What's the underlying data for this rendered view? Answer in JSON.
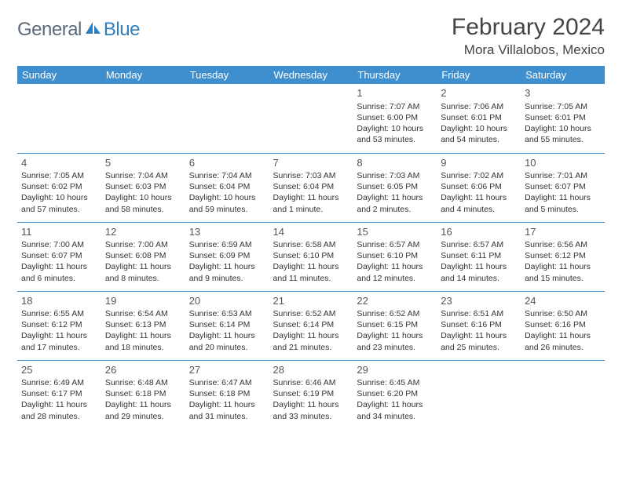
{
  "brand": {
    "name_part1": "General",
    "name_part2": "Blue",
    "part1_color": "#5a6a78",
    "part2_color": "#2f7fbf",
    "icon_color": "#2f7fbf"
  },
  "title": "February 2024",
  "location": "Mora Villalobos, Mexico",
  "colors": {
    "header_bg": "#3f8fcf",
    "row_divider": "#3f8fcf",
    "page_bg": "#ffffff",
    "text": "#333333"
  },
  "day_headers": [
    "Sunday",
    "Monday",
    "Tuesday",
    "Wednesday",
    "Thursday",
    "Friday",
    "Saturday"
  ],
  "first_weekday_index": 4,
  "days": [
    {
      "n": 1,
      "sunrise": "7:07 AM",
      "sunset": "6:00 PM",
      "daylight": "10 hours and 53 minutes."
    },
    {
      "n": 2,
      "sunrise": "7:06 AM",
      "sunset": "6:01 PM",
      "daylight": "10 hours and 54 minutes."
    },
    {
      "n": 3,
      "sunrise": "7:05 AM",
      "sunset": "6:01 PM",
      "daylight": "10 hours and 55 minutes."
    },
    {
      "n": 4,
      "sunrise": "7:05 AM",
      "sunset": "6:02 PM",
      "daylight": "10 hours and 57 minutes."
    },
    {
      "n": 5,
      "sunrise": "7:04 AM",
      "sunset": "6:03 PM",
      "daylight": "10 hours and 58 minutes."
    },
    {
      "n": 6,
      "sunrise": "7:04 AM",
      "sunset": "6:04 PM",
      "daylight": "10 hours and 59 minutes."
    },
    {
      "n": 7,
      "sunrise": "7:03 AM",
      "sunset": "6:04 PM",
      "daylight": "11 hours and 1 minute."
    },
    {
      "n": 8,
      "sunrise": "7:03 AM",
      "sunset": "6:05 PM",
      "daylight": "11 hours and 2 minutes."
    },
    {
      "n": 9,
      "sunrise": "7:02 AM",
      "sunset": "6:06 PM",
      "daylight": "11 hours and 4 minutes."
    },
    {
      "n": 10,
      "sunrise": "7:01 AM",
      "sunset": "6:07 PM",
      "daylight": "11 hours and 5 minutes."
    },
    {
      "n": 11,
      "sunrise": "7:00 AM",
      "sunset": "6:07 PM",
      "daylight": "11 hours and 6 minutes."
    },
    {
      "n": 12,
      "sunrise": "7:00 AM",
      "sunset": "6:08 PM",
      "daylight": "11 hours and 8 minutes."
    },
    {
      "n": 13,
      "sunrise": "6:59 AM",
      "sunset": "6:09 PM",
      "daylight": "11 hours and 9 minutes."
    },
    {
      "n": 14,
      "sunrise": "6:58 AM",
      "sunset": "6:10 PM",
      "daylight": "11 hours and 11 minutes."
    },
    {
      "n": 15,
      "sunrise": "6:57 AM",
      "sunset": "6:10 PM",
      "daylight": "11 hours and 12 minutes."
    },
    {
      "n": 16,
      "sunrise": "6:57 AM",
      "sunset": "6:11 PM",
      "daylight": "11 hours and 14 minutes."
    },
    {
      "n": 17,
      "sunrise": "6:56 AM",
      "sunset": "6:12 PM",
      "daylight": "11 hours and 15 minutes."
    },
    {
      "n": 18,
      "sunrise": "6:55 AM",
      "sunset": "6:12 PM",
      "daylight": "11 hours and 17 minutes."
    },
    {
      "n": 19,
      "sunrise": "6:54 AM",
      "sunset": "6:13 PM",
      "daylight": "11 hours and 18 minutes."
    },
    {
      "n": 20,
      "sunrise": "6:53 AM",
      "sunset": "6:14 PM",
      "daylight": "11 hours and 20 minutes."
    },
    {
      "n": 21,
      "sunrise": "6:52 AM",
      "sunset": "6:14 PM",
      "daylight": "11 hours and 21 minutes."
    },
    {
      "n": 22,
      "sunrise": "6:52 AM",
      "sunset": "6:15 PM",
      "daylight": "11 hours and 23 minutes."
    },
    {
      "n": 23,
      "sunrise": "6:51 AM",
      "sunset": "6:16 PM",
      "daylight": "11 hours and 25 minutes."
    },
    {
      "n": 24,
      "sunrise": "6:50 AM",
      "sunset": "6:16 PM",
      "daylight": "11 hours and 26 minutes."
    },
    {
      "n": 25,
      "sunrise": "6:49 AM",
      "sunset": "6:17 PM",
      "daylight": "11 hours and 28 minutes."
    },
    {
      "n": 26,
      "sunrise": "6:48 AM",
      "sunset": "6:18 PM",
      "daylight": "11 hours and 29 minutes."
    },
    {
      "n": 27,
      "sunrise": "6:47 AM",
      "sunset": "6:18 PM",
      "daylight": "11 hours and 31 minutes."
    },
    {
      "n": 28,
      "sunrise": "6:46 AM",
      "sunset": "6:19 PM",
      "daylight": "11 hours and 33 minutes."
    },
    {
      "n": 29,
      "sunrise": "6:45 AM",
      "sunset": "6:20 PM",
      "daylight": "11 hours and 34 minutes."
    }
  ],
  "labels": {
    "sunrise": "Sunrise:",
    "sunset": "Sunset:",
    "daylight": "Daylight:"
  }
}
